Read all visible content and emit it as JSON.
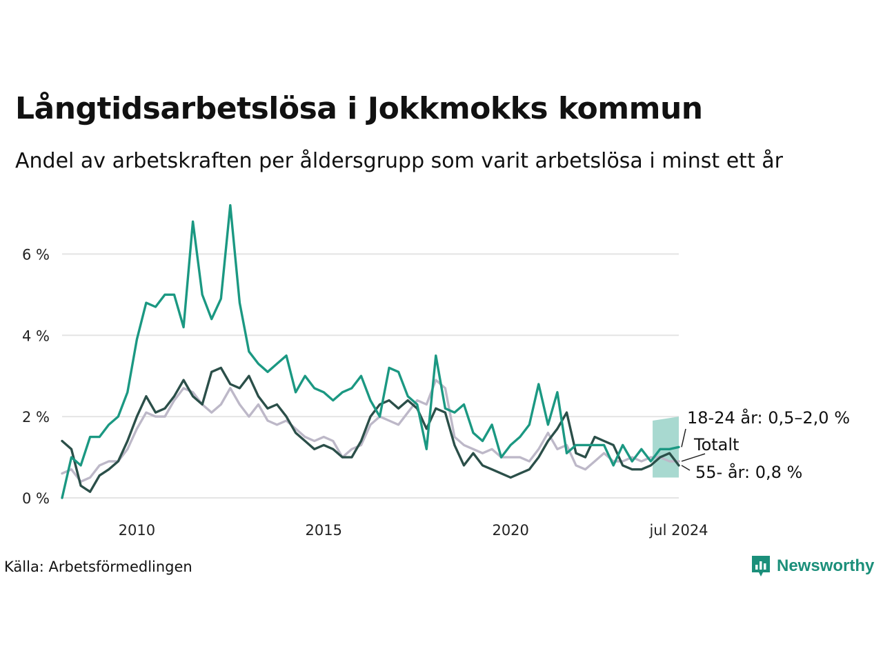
{
  "title": "Långtidsarbetslösa i Jokkmokks kommun",
  "subtitle": "Andel av arbetskraften per åldersgrupp som varit arbetslösa i minst ett år",
  "source": "Källa: Arbetsförmedlingen",
  "brand": {
    "name": "Newsworthy",
    "icon": "newsworthy-logo-icon"
  },
  "colors": {
    "young": "#1b9882",
    "old": "#2b4f49",
    "total": "#bdb8c8",
    "band": "#a3d7cd",
    "grid": "#e4e4e4"
  },
  "chart_data": {
    "type": "line",
    "title": "Långtidsarbetslösa i Jokkmokks kommun",
    "xlabel": "",
    "ylabel": "",
    "xlim": [
      2008.0,
      2024.5
    ],
    "ylim": [
      0,
      7.5
    ],
    "y_ticks": [
      {
        "value": 0,
        "label": "0 %"
      },
      {
        "value": 2,
        "label": "2 %"
      },
      {
        "value": 4,
        "label": "4 %"
      },
      {
        "value": 6,
        "label": "6 %"
      }
    ],
    "x_ticks": [
      {
        "value": 2010,
        "label": "2010"
      },
      {
        "value": 2015,
        "label": "2015"
      },
      {
        "value": 2020,
        "label": "2020"
      },
      {
        "value": 2024.5,
        "label": "jul 2024"
      }
    ],
    "series": [
      {
        "name": "Totalt",
        "color": "#bdb8c8",
        "x": [
          2008.0,
          2008.25,
          2008.5,
          2008.75,
          2009.0,
          2009.25,
          2009.5,
          2009.75,
          2010.0,
          2010.25,
          2010.5,
          2010.75,
          2011.0,
          2011.25,
          2011.5,
          2011.75,
          2012.0,
          2012.25,
          2012.5,
          2012.75,
          2013.0,
          2013.25,
          2013.5,
          2013.75,
          2014.0,
          2014.25,
          2014.5,
          2014.75,
          2015.0,
          2015.25,
          2015.5,
          2015.75,
          2016.0,
          2016.25,
          2016.5,
          2016.75,
          2017.0,
          2017.25,
          2017.5,
          2017.75,
          2018.0,
          2018.25,
          2018.5,
          2018.75,
          2019.0,
          2019.25,
          2019.5,
          2019.75,
          2020.0,
          2020.25,
          2020.5,
          2020.75,
          2021.0,
          2021.25,
          2021.5,
          2021.75,
          2022.0,
          2022.25,
          2022.5,
          2022.75,
          2023.0,
          2023.25,
          2023.5,
          2023.75,
          2024.0,
          2024.25,
          2024.5
        ],
        "y": [
          0.6,
          0.7,
          0.4,
          0.5,
          0.8,
          0.9,
          0.9,
          1.2,
          1.7,
          2.1,
          2.0,
          2.0,
          2.4,
          2.7,
          2.6,
          2.3,
          2.1,
          2.3,
          2.7,
          2.3,
          2.0,
          2.3,
          1.9,
          1.8,
          1.9,
          1.7,
          1.5,
          1.4,
          1.5,
          1.4,
          1.0,
          1.2,
          1.3,
          1.8,
          2.0,
          1.9,
          1.8,
          2.1,
          2.4,
          2.3,
          2.9,
          2.7,
          1.5,
          1.3,
          1.2,
          1.1,
          1.2,
          1.0,
          1.0,
          1.0,
          0.9,
          1.2,
          1.6,
          1.2,
          1.3,
          0.8,
          0.7,
          0.9,
          1.1,
          0.9,
          0.9,
          1.0,
          0.9,
          1.0,
          1.0,
          0.9,
          0.9
        ]
      },
      {
        "name": "55- år: 0,8 %",
        "color": "#2b4f49",
        "x": [
          2008.0,
          2008.25,
          2008.5,
          2008.75,
          2009.0,
          2009.25,
          2009.5,
          2009.75,
          2010.0,
          2010.25,
          2010.5,
          2010.75,
          2011.0,
          2011.25,
          2011.5,
          2011.75,
          2012.0,
          2012.25,
          2012.5,
          2012.75,
          2013.0,
          2013.25,
          2013.5,
          2013.75,
          2014.0,
          2014.25,
          2014.5,
          2014.75,
          2015.0,
          2015.25,
          2015.5,
          2015.75,
          2016.0,
          2016.25,
          2016.5,
          2016.75,
          2017.0,
          2017.25,
          2017.5,
          2017.75,
          2018.0,
          2018.25,
          2018.5,
          2018.75,
          2019.0,
          2019.25,
          2019.5,
          2019.75,
          2020.0,
          2020.25,
          2020.5,
          2020.75,
          2021.0,
          2021.25,
          2021.5,
          2021.75,
          2022.0,
          2022.25,
          2022.5,
          2022.75,
          2023.0,
          2023.25,
          2023.5,
          2023.75,
          2024.0,
          2024.25,
          2024.5
        ],
        "y": [
          1.4,
          1.2,
          0.3,
          0.15,
          0.55,
          0.7,
          0.9,
          1.4,
          2.0,
          2.5,
          2.1,
          2.2,
          2.5,
          2.9,
          2.5,
          2.3,
          3.1,
          3.2,
          2.8,
          2.7,
          3.0,
          2.5,
          2.2,
          2.3,
          2.0,
          1.6,
          1.4,
          1.2,
          1.3,
          1.2,
          1.0,
          1.0,
          1.4,
          2.0,
          2.3,
          2.4,
          2.2,
          2.4,
          2.2,
          1.7,
          2.2,
          2.1,
          1.3,
          0.8,
          1.1,
          0.8,
          0.7,
          0.6,
          0.5,
          0.6,
          0.7,
          1.0,
          1.4,
          1.7,
          2.1,
          1.1,
          1.0,
          1.5,
          1.4,
          1.3,
          0.8,
          0.7,
          0.7,
          0.8,
          1.0,
          1.1,
          0.8
        ]
      },
      {
        "name": "18-24 år: 0,5–2,0 %",
        "color": "#1b9882",
        "x": [
          2008.0,
          2008.25,
          2008.5,
          2008.75,
          2009.0,
          2009.25,
          2009.5,
          2009.75,
          2010.0,
          2010.25,
          2010.5,
          2010.75,
          2011.0,
          2011.25,
          2011.5,
          2011.75,
          2012.0,
          2012.25,
          2012.5,
          2012.75,
          2013.0,
          2013.25,
          2013.5,
          2013.75,
          2014.0,
          2014.25,
          2014.5,
          2014.75,
          2015.0,
          2015.25,
          2015.5,
          2015.75,
          2016.0,
          2016.25,
          2016.5,
          2016.75,
          2017.0,
          2017.25,
          2017.5,
          2017.75,
          2018.0,
          2018.25,
          2018.5,
          2018.75,
          2019.0,
          2019.25,
          2019.5,
          2019.75,
          2020.0,
          2020.25,
          2020.5,
          2020.75,
          2021.0,
          2021.25,
          2021.5,
          2021.75,
          2022.0,
          2022.25,
          2022.5,
          2022.75,
          2023.0,
          2023.25,
          2023.5,
          2023.75,
          2024.0,
          2024.25,
          2024.5
        ],
        "y": [
          0.0,
          1.0,
          0.8,
          1.5,
          1.5,
          1.8,
          2.0,
          2.6,
          3.9,
          4.8,
          4.7,
          5.0,
          5.0,
          4.2,
          6.8,
          5.0,
          4.4,
          4.9,
          7.2,
          4.8,
          3.6,
          3.3,
          3.1,
          3.3,
          3.5,
          2.6,
          3.0,
          2.7,
          2.6,
          2.4,
          2.6,
          2.7,
          3.0,
          2.4,
          2.0,
          3.2,
          3.1,
          2.5,
          2.3,
          1.2,
          3.5,
          2.2,
          2.1,
          2.3,
          1.6,
          1.4,
          1.8,
          1.0,
          1.3,
          1.5,
          1.8,
          2.8,
          1.8,
          2.6,
          1.1,
          1.3,
          1.3,
          1.3,
          1.3,
          0.8,
          1.3,
          0.9,
          1.2,
          0.9,
          1.2,
          1.2,
          1.25
        ]
      }
    ],
    "band": {
      "name": "18-24 år",
      "x": [
        2023.8,
        2024.5
      ],
      "lower": [
        0.5,
        0.5
      ],
      "upper": [
        1.9,
        2.0
      ]
    },
    "labels": {
      "young": "18-24 år: 0,5–2,0 %",
      "total": "Totalt",
      "old": "55- år: 0,8 %"
    }
  }
}
